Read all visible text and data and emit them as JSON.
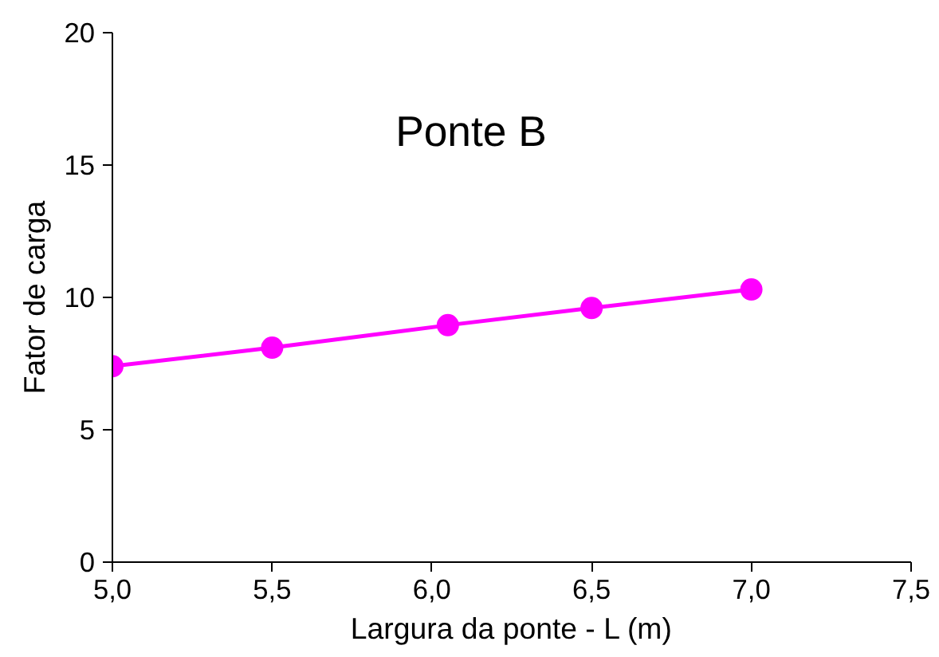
{
  "chart_data": {
    "type": "line",
    "title": "Ponte B",
    "xlabel": "Largura da ponte - L (m)",
    "ylabel": "Fator de carga",
    "x": [
      5.0,
      5.5,
      6.05,
      6.5,
      7.0
    ],
    "series": [
      {
        "color": "#ff00ff",
        "values": [
          7.4,
          8.1,
          8.95,
          9.6,
          10.3
        ]
      }
    ],
    "xlim": [
      5.0,
      7.5
    ],
    "ylim": [
      0,
      20
    ],
    "xticks": [
      {
        "value": 5.0,
        "label": "5,0"
      },
      {
        "value": 5.5,
        "label": "5,5"
      },
      {
        "value": 6.0,
        "label": "6,0"
      },
      {
        "value": 6.5,
        "label": "6,5"
      },
      {
        "value": 7.0,
        "label": "7,0"
      },
      {
        "value": 7.5,
        "label": "7,5"
      }
    ],
    "yticks": [
      0,
      5,
      10,
      15,
      20
    ],
    "marker": "circle",
    "line_style": "solid"
  }
}
